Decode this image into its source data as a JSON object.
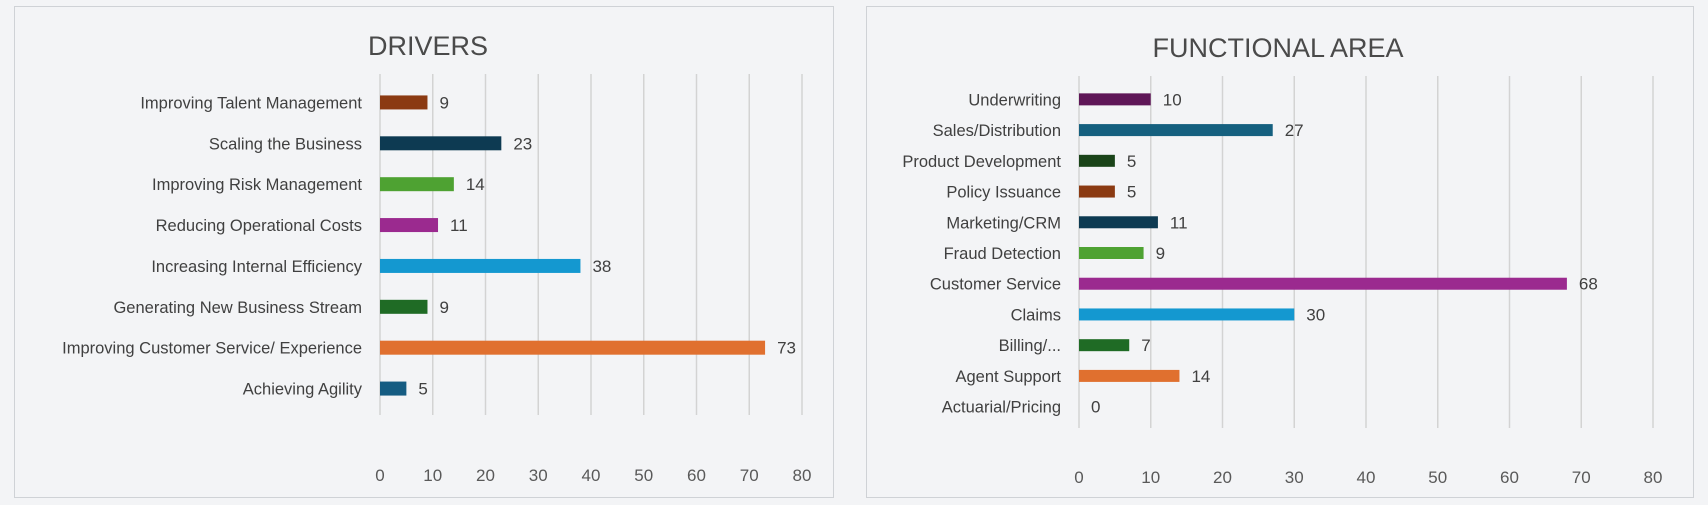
{
  "chart_data": [
    {
      "type": "bar",
      "orientation": "horizontal",
      "title": "DRIVERS",
      "xlim": [
        0,
        80
      ],
      "ticks": [
        0,
        10,
        20,
        30,
        40,
        50,
        60,
        70,
        80
      ],
      "grid": true,
      "legend": "none",
      "bars": [
        {
          "label": "Improving Talent Management",
          "value": 9,
          "color": "#8b3a12"
        },
        {
          "label": "Scaling the Business",
          "value": 23,
          "color": "#0d3a52"
        },
        {
          "label": "Improving Risk Management",
          "value": 14,
          "color": "#4ea232"
        },
        {
          "label": "Reducing Operational Costs",
          "value": 11,
          "color": "#9b2a8f"
        },
        {
          "label": "Increasing Internal Efficiency",
          "value": 38,
          "color": "#1498d0"
        },
        {
          "label": "Generating New Business Stream",
          "value": 9,
          "color": "#1f6b25"
        },
        {
          "label": "Improving Customer Service/ Experience",
          "value": 73,
          "color": "#e0702f"
        },
        {
          "label": "Achieving Agility",
          "value": 5,
          "color": "#155c82"
        }
      ]
    },
    {
      "type": "bar",
      "orientation": "horizontal",
      "title": "FUNCTIONAL AREA",
      "xlim": [
        0,
        80
      ],
      "ticks": [
        0,
        10,
        20,
        30,
        40,
        50,
        60,
        70,
        80
      ],
      "grid": true,
      "legend": "none",
      "bars": [
        {
          "label": "Underwriting",
          "value": 10,
          "color": "#5e1657"
        },
        {
          "label": "Sales/Distribution",
          "value": 27,
          "color": "#15607f"
        },
        {
          "label": "Product Development",
          "value": 5,
          "color": "#1a4419"
        },
        {
          "label": "Policy Issuance",
          "value": 5,
          "color": "#8b3a12"
        },
        {
          "label": "Marketing/CRM",
          "value": 11,
          "color": "#0d3a52"
        },
        {
          "label": "Fraud Detection",
          "value": 9,
          "color": "#4ea232"
        },
        {
          "label": "Customer Service",
          "value": 68,
          "color": "#9b2a8f"
        },
        {
          "label": "Claims",
          "value": 30,
          "color": "#1498d0"
        },
        {
          "label": "Billing/...",
          "value": 7,
          "color": "#1f6b25"
        },
        {
          "label": "Agent Support",
          "value": 14,
          "color": "#e0702f"
        },
        {
          "label": "Actuarial/Pricing",
          "value": 0,
          "color": "#155c82"
        }
      ]
    }
  ]
}
